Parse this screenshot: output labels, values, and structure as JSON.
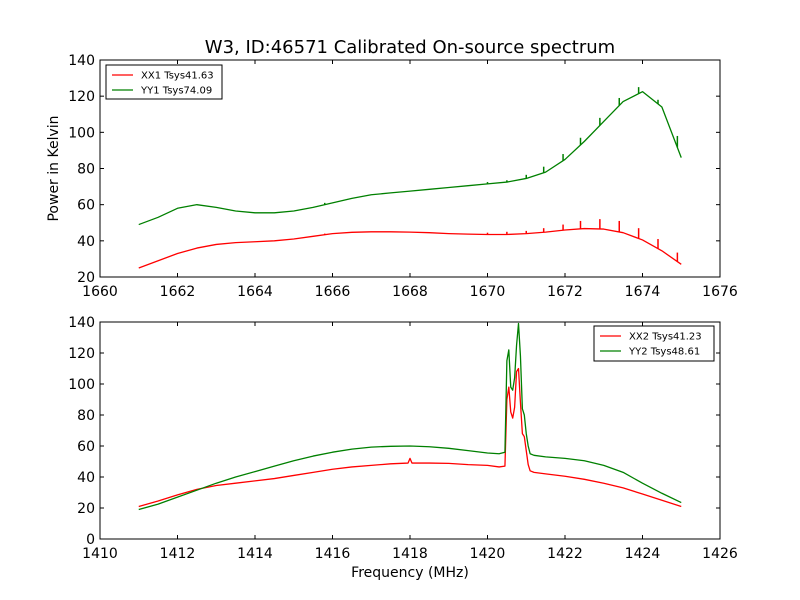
{
  "figure": {
    "title": "W3, ID:46571 Calibrated On-source spectrum"
  },
  "chart_data": [
    {
      "type": "line",
      "title": "W3, ID:46571 Calibrated On-source spectrum",
      "xlabel": "",
      "ylabel": "Power in Kelvin",
      "xlim": [
        1660,
        1676
      ],
      "ylim": [
        20,
        140
      ],
      "xticks": [
        "1660",
        "1662",
        "1664",
        "1666",
        "1668",
        "1670",
        "1672",
        "1674",
        "1676"
      ],
      "yticks": [
        "20",
        "40",
        "60",
        "80",
        "100",
        "120",
        "140"
      ],
      "legend_position": "top-left",
      "grid": false,
      "series": [
        {
          "name": "XX1 Tsys41.63",
          "color": "#ff0000",
          "x": [
            1661.0,
            1661.5,
            1662.0,
            1662.5,
            1663.0,
            1663.5,
            1664.0,
            1664.5,
            1665.0,
            1665.5,
            1666.0,
            1666.5,
            1667.0,
            1667.5,
            1668.0,
            1668.5,
            1669.0,
            1669.5,
            1670.0,
            1670.5,
            1671.0,
            1671.5,
            1672.0,
            1672.5,
            1673.0,
            1673.5,
            1674.0,
            1674.5,
            1675.0
          ],
          "y": [
            25,
            29,
            33,
            36,
            38,
            39,
            39.5,
            40,
            41,
            42.5,
            44,
            44.7,
            45,
            45,
            44.8,
            44.5,
            44,
            43.7,
            43.5,
            43.5,
            44,
            44.8,
            46,
            46.8,
            46.5,
            44.5,
            40.5,
            34.5,
            27
          ],
          "spikes": [
            {
              "x": 1665.8,
              "y": 44
            },
            {
              "x": 1670.0,
              "y": 44.5
            },
            {
              "x": 1670.5,
              "y": 45
            },
            {
              "x": 1671.0,
              "y": 45.5
            },
            {
              "x": 1671.45,
              "y": 47
            },
            {
              "x": 1671.95,
              "y": 49
            },
            {
              "x": 1672.4,
              "y": 51
            },
            {
              "x": 1672.9,
              "y": 52
            },
            {
              "x": 1673.4,
              "y": 51
            },
            {
              "x": 1673.9,
              "y": 47
            },
            {
              "x": 1674.4,
              "y": 41
            },
            {
              "x": 1674.9,
              "y": 33.5
            }
          ]
        },
        {
          "name": "YY1 Tsys74.09",
          "color": "#008000",
          "x": [
            1661.0,
            1661.5,
            1662.0,
            1662.5,
            1663.0,
            1663.5,
            1664.0,
            1664.5,
            1665.0,
            1665.5,
            1666.0,
            1666.5,
            1667.0,
            1667.5,
            1668.0,
            1668.5,
            1669.0,
            1669.5,
            1670.0,
            1670.5,
            1671.0,
            1671.5,
            1672.0,
            1672.5,
            1673.0,
            1673.5,
            1674.0,
            1674.5,
            1675.0
          ],
          "y": [
            49,
            53,
            58,
            60,
            58.5,
            56.5,
            55.5,
            55.5,
            56.5,
            58.5,
            61,
            63.5,
            65.5,
            66.5,
            67.5,
            68.5,
            69.5,
            70.5,
            71.5,
            72.5,
            74.5,
            78,
            85,
            95,
            106,
            117,
            122.5,
            114,
            86
          ],
          "spikes": [
            {
              "x": 1665.8,
              "y": 61
            },
            {
              "x": 1670.0,
              "y": 72.5
            },
            {
              "x": 1670.5,
              "y": 73.5
            },
            {
              "x": 1671.0,
              "y": 76.5
            },
            {
              "x": 1671.45,
              "y": 81
            },
            {
              "x": 1671.95,
              "y": 88
            },
            {
              "x": 1672.4,
              "y": 97
            },
            {
              "x": 1672.9,
              "y": 108
            },
            {
              "x": 1673.4,
              "y": 119
            },
            {
              "x": 1673.9,
              "y": 125
            },
            {
              "x": 1674.4,
              "y": 118
            },
            {
              "x": 1674.9,
              "y": 98
            }
          ]
        }
      ]
    },
    {
      "type": "line",
      "title": "",
      "xlabel": "Frequency (MHz)",
      "ylabel": "",
      "xlim": [
        1410,
        1426
      ],
      "ylim": [
        0,
        140
      ],
      "xticks": [
        "1410",
        "1412",
        "1414",
        "1416",
        "1418",
        "1420",
        "1422",
        "1424",
        "1426"
      ],
      "yticks": [
        "0",
        "20",
        "40",
        "60",
        "80",
        "100",
        "120",
        "140"
      ],
      "legend_position": "top-right",
      "grid": false,
      "series": [
        {
          "name": "XX2 Tsys41.23",
          "color": "#ff0000",
          "x": [
            1411.0,
            1411.5,
            1412.0,
            1412.5,
            1413.0,
            1413.5,
            1414.0,
            1414.5,
            1415.0,
            1415.5,
            1416.0,
            1416.5,
            1417.0,
            1417.5,
            1417.95,
            1418.0,
            1418.05,
            1418.5,
            1419.0,
            1419.5,
            1420.0,
            1420.3,
            1420.45,
            1420.5,
            1420.55,
            1420.6,
            1420.65,
            1420.7,
            1420.75,
            1420.8,
            1420.85,
            1420.9,
            1420.95,
            1421.0,
            1421.05,
            1421.1,
            1421.2,
            1421.5,
            1422.0,
            1422.5,
            1423.0,
            1423.5,
            1424.0,
            1424.5,
            1425.0
          ],
          "y": [
            21,
            24.5,
            28.5,
            32,
            34.5,
            36,
            37.5,
            39,
            41,
            43,
            45,
            46.5,
            47.5,
            48.5,
            49,
            52,
            49,
            49,
            48.8,
            48,
            47.5,
            46.5,
            47,
            90,
            98,
            82,
            78,
            85,
            108,
            110,
            88,
            68,
            66,
            57,
            48,
            44,
            43,
            42,
            40.5,
            38.5,
            36,
            33,
            29,
            25,
            21
          ],
          "spikes": []
        },
        {
          "name": "YY2 Tsys48.61",
          "color": "#008000",
          "x": [
            1411.0,
            1411.5,
            1412.0,
            1412.5,
            1413.0,
            1413.5,
            1414.0,
            1414.5,
            1415.0,
            1415.5,
            1416.0,
            1416.5,
            1417.0,
            1417.5,
            1418.0,
            1418.5,
            1419.0,
            1419.5,
            1420.0,
            1420.3,
            1420.45,
            1420.5,
            1420.55,
            1420.6,
            1420.65,
            1420.7,
            1420.75,
            1420.8,
            1420.85,
            1420.9,
            1420.95,
            1421.0,
            1421.05,
            1421.1,
            1421.2,
            1421.5,
            1422.0,
            1422.5,
            1423.0,
            1423.5,
            1424.0,
            1424.5,
            1425.0
          ],
          "y": [
            19,
            22.5,
            27,
            31.5,
            36,
            40,
            43.5,
            47,
            50.5,
            53.5,
            56,
            58,
            59.3,
            59.8,
            60,
            59.5,
            58.5,
            57,
            55.5,
            55,
            56,
            115,
            122,
            98,
            96,
            104,
            125,
            139,
            118,
            84,
            80,
            68,
            60,
            55,
            54,
            53,
            52,
            50.5,
            47.5,
            43,
            36,
            29.5,
            23.5
          ],
          "spikes": []
        }
      ]
    }
  ]
}
